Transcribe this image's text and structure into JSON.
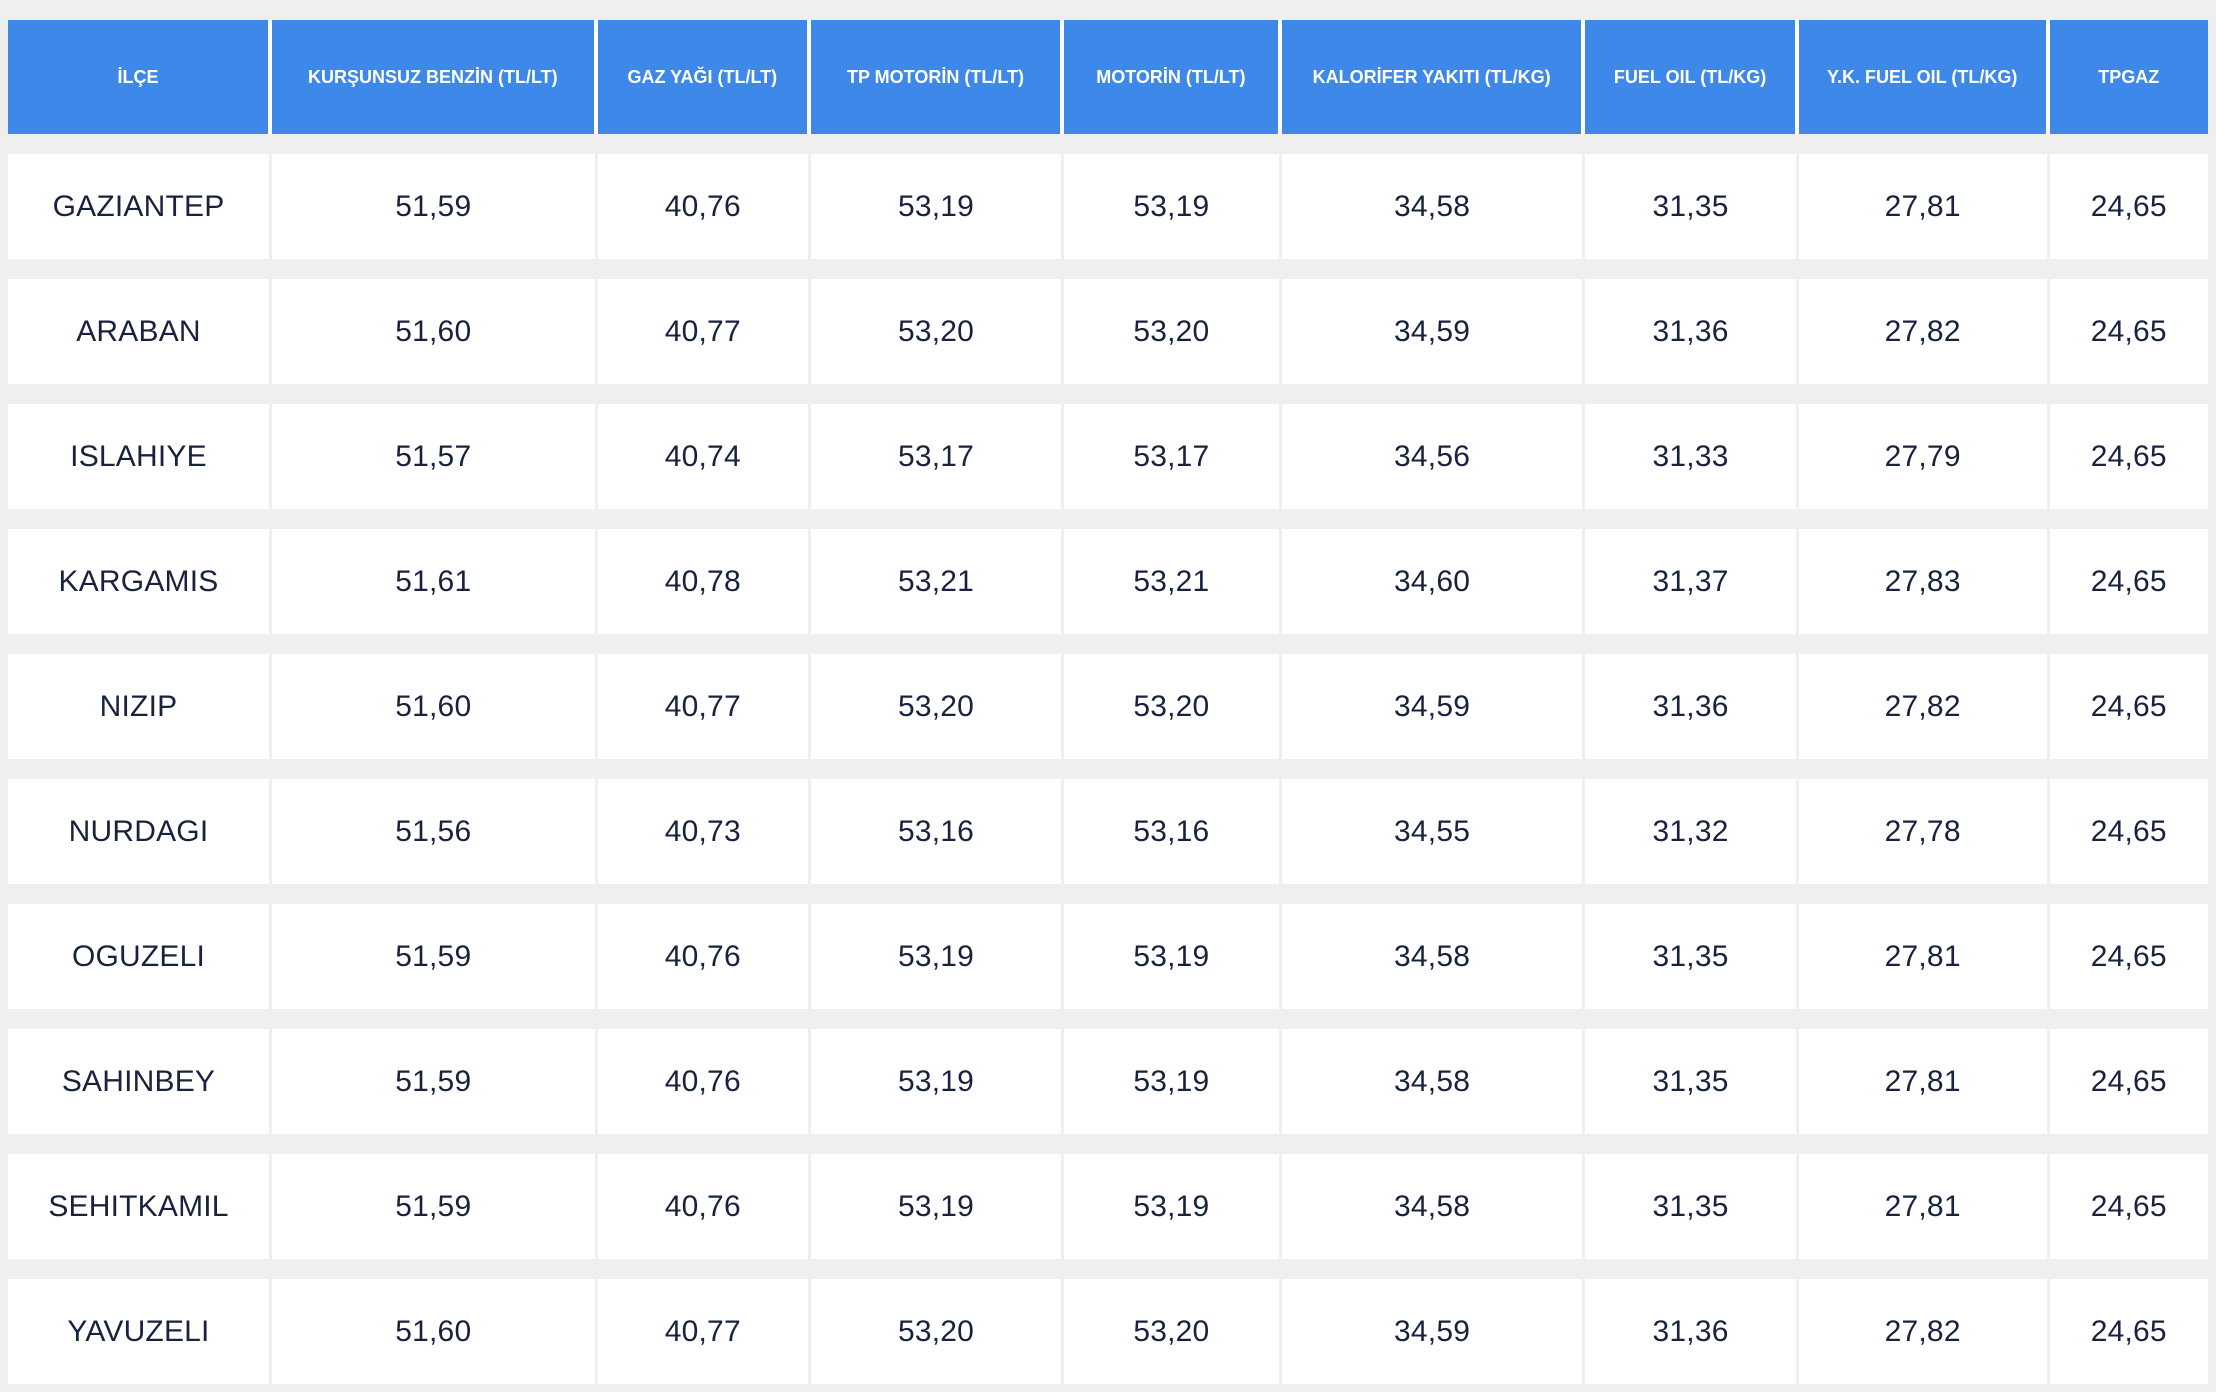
{
  "table": {
    "columns": [
      {
        "key": "ilce",
        "label": "İLÇE"
      },
      {
        "key": "kursunsuz-benzin",
        "label": "KURŞUNSUZ BENZİN (TL/LT)"
      },
      {
        "key": "gaz-yagi",
        "label": "GAZ YAĞI (TL/LT)"
      },
      {
        "key": "tp-motorin",
        "label": "TP MOTORİN (TL/LT)"
      },
      {
        "key": "motorin",
        "label": "MOTORİN (TL/LT)"
      },
      {
        "key": "kalorifer-yakiti",
        "label": "KALORİFER YAKITI (TL/KG)"
      },
      {
        "key": "fuel-oil",
        "label": "FUEL OIL (TL/KG)"
      },
      {
        "key": "yk-fuel-oil",
        "label": "Y.K. FUEL OIL (TL/KG)"
      },
      {
        "key": "tpgaz",
        "label": "TPGAZ"
      }
    ],
    "rows": [
      [
        "GAZIANTEP",
        "51,59",
        "40,76",
        "53,19",
        "53,19",
        "34,58",
        "31,35",
        "27,81",
        "24,65"
      ],
      [
        "ARABAN",
        "51,60",
        "40,77",
        "53,20",
        "53,20",
        "34,59",
        "31,36",
        "27,82",
        "24,65"
      ],
      [
        "ISLAHIYE",
        "51,57",
        "40,74",
        "53,17",
        "53,17",
        "34,56",
        "31,33",
        "27,79",
        "24,65"
      ],
      [
        "KARGAMIS",
        "51,61",
        "40,78",
        "53,21",
        "53,21",
        "34,60",
        "31,37",
        "27,83",
        "24,65"
      ],
      [
        "NIZIP",
        "51,60",
        "40,77",
        "53,20",
        "53,20",
        "34,59",
        "31,36",
        "27,82",
        "24,65"
      ],
      [
        "NURDAGI",
        "51,56",
        "40,73",
        "53,16",
        "53,16",
        "34,55",
        "31,32",
        "27,78",
        "24,65"
      ],
      [
        "OGUZELI",
        "51,59",
        "40,76",
        "53,19",
        "53,19",
        "34,58",
        "31,35",
        "27,81",
        "24,65"
      ],
      [
        "SAHINBEY",
        "51,59",
        "40,76",
        "53,19",
        "53,19",
        "34,58",
        "31,35",
        "27,81",
        "24,65"
      ],
      [
        "SEHITKAMIL",
        "51,59",
        "40,76",
        "53,19",
        "53,19",
        "34,58",
        "31,35",
        "27,81",
        "24,65"
      ],
      [
        "YAVUZELI",
        "51,60",
        "40,77",
        "53,20",
        "53,20",
        "34,59",
        "31,36",
        "27,82",
        "24,65"
      ]
    ]
  },
  "colors": {
    "header_bg": "#3d88e9",
    "header_text": "#ffffff",
    "cell_bg": "#ffffff",
    "cell_text": "#17233e",
    "page_bg": "#efefef"
  }
}
